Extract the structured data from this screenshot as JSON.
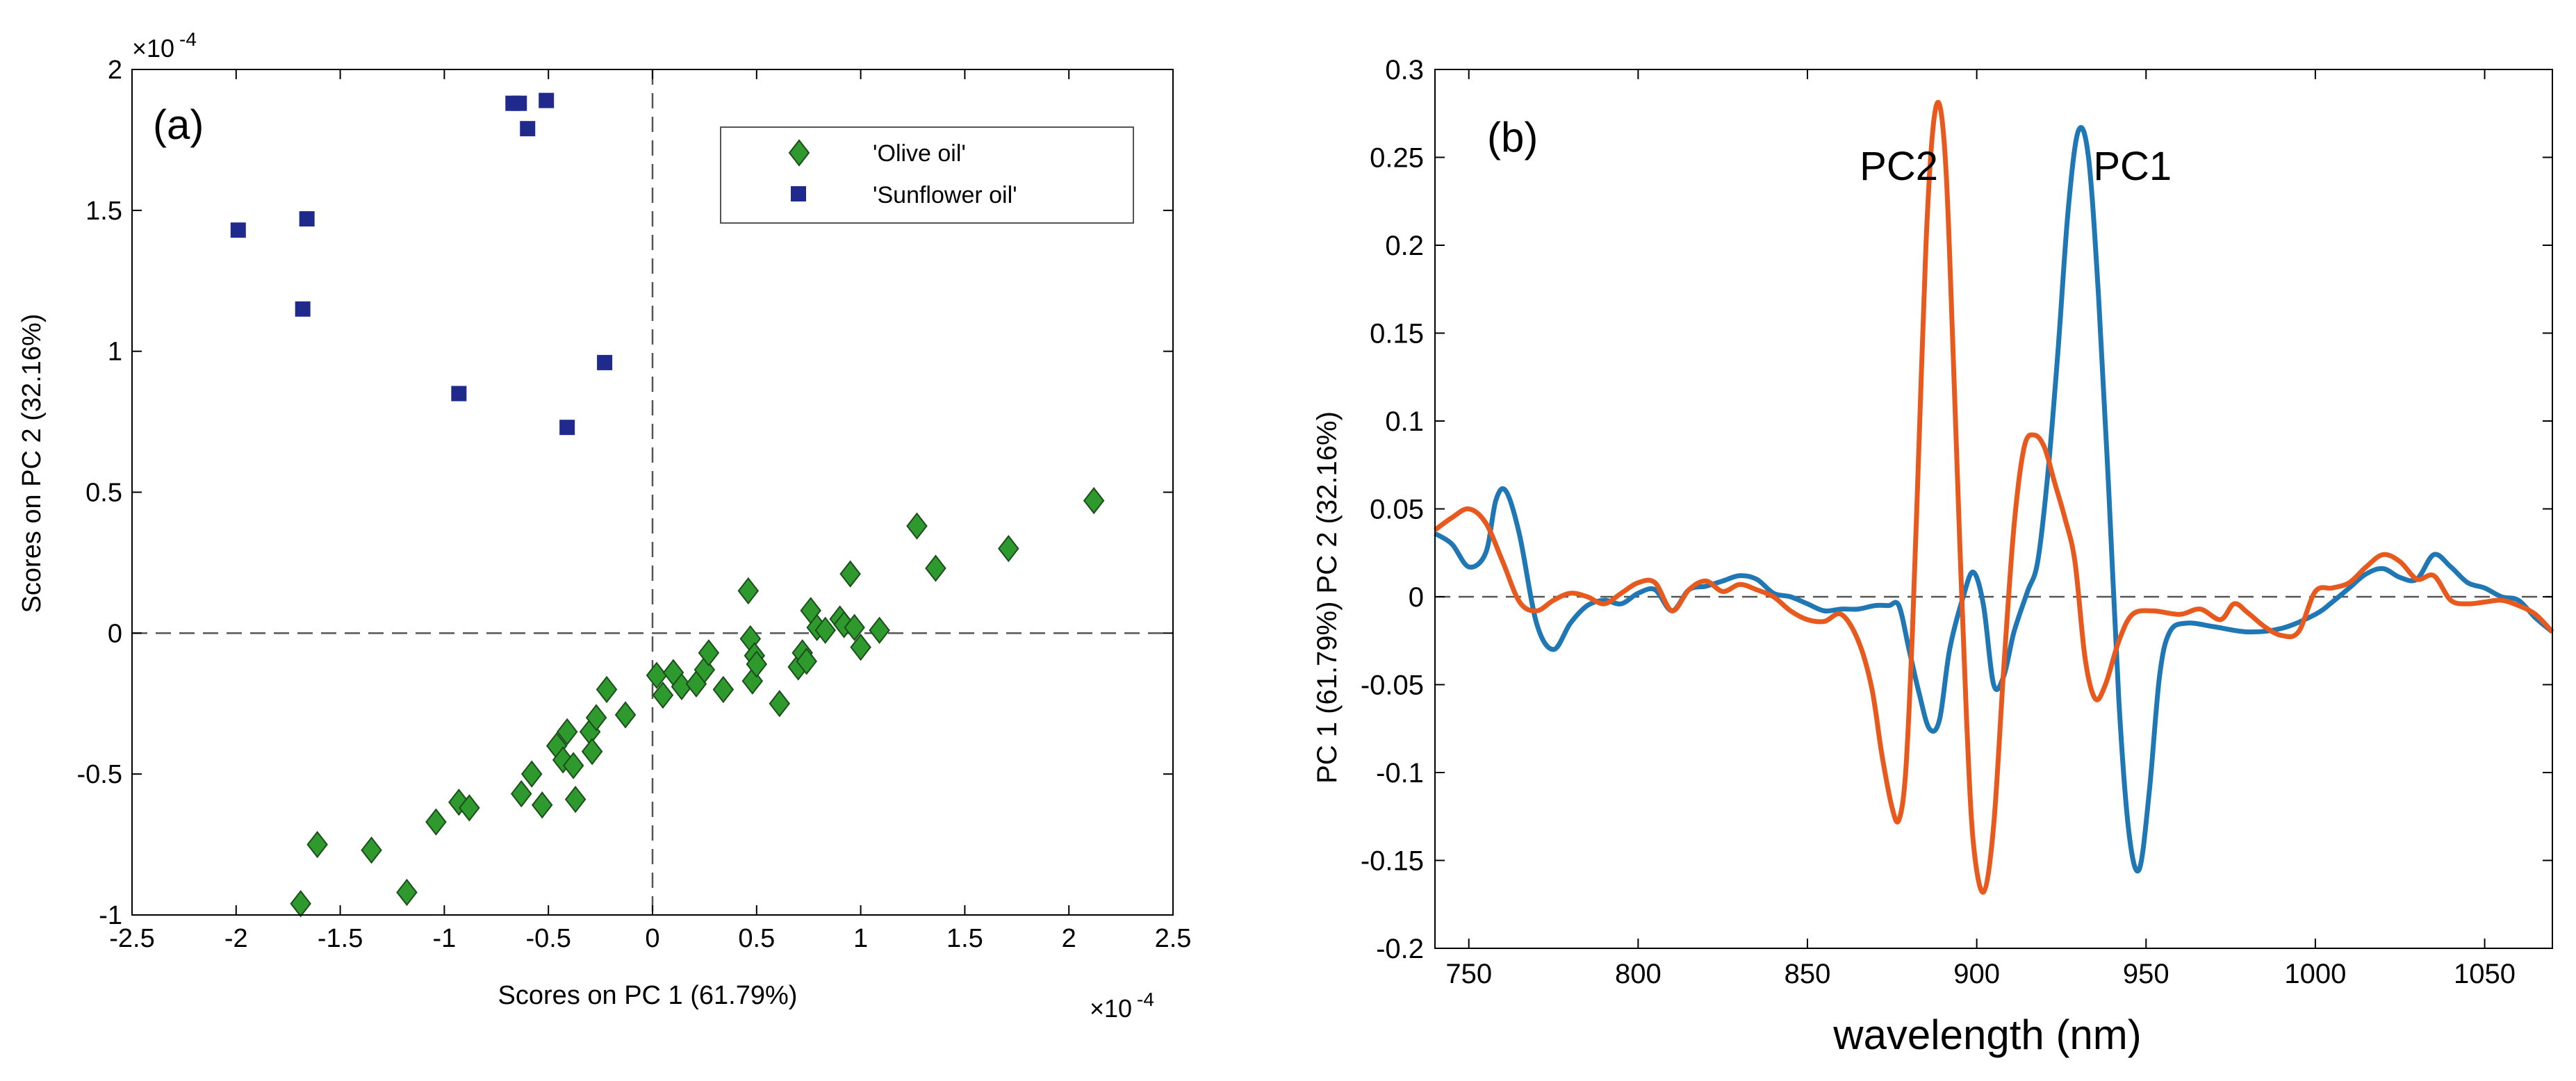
{
  "colors": {
    "olive": "#2e9a2e",
    "sunflower": "#1f2a8c",
    "pc1": "#1f77b4",
    "pc2": "#e8591e",
    "axis": "#000000",
    "dash": "#555555"
  },
  "chart_data": [
    {
      "type": "scatter",
      "panel_label": "(a)",
      "xlabel": "Scores on PC 1 (61.79%)",
      "ylabel": "Scores on PC 2 (32.16%)",
      "x_multiplier": "×10",
      "x_exponent": "-4",
      "y_multiplier": "×10",
      "y_exponent": "-4",
      "xlim": [
        -2.5,
        2.5
      ],
      "ylim": [
        -1,
        2
      ],
      "xticks": [
        -2.5,
        -2,
        -1.5,
        -1,
        -0.5,
        0,
        0.5,
        1,
        1.5,
        2,
        2.5
      ],
      "xtick_labels": [
        "-2.5",
        "-2",
        "-1.5",
        "-1",
        "-0.5",
        "0",
        "0.5",
        "1",
        "1.5",
        "2",
        "2.5"
      ],
      "yticks": [
        -1,
        -0.5,
        0,
        0.5,
        1,
        1.5,
        2
      ],
      "ytick_labels": [
        "-1",
        "-0.5",
        "0",
        "0.5",
        "1",
        "1.5",
        "2"
      ],
      "reference_lines": {
        "x": 0,
        "y": 0
      },
      "legend_position": "top-right",
      "series": [
        {
          "name": "'Olive oil'",
          "marker": "diamond",
          "points": [
            [
              -1.69,
              -0.96
            ],
            [
              -1.61,
              -0.75
            ],
            [
              -1.35,
              -0.77
            ],
            [
              -1.18,
              -0.92
            ],
            [
              -1.04,
              -0.67
            ],
            [
              -0.93,
              -0.6
            ],
            [
              -0.88,
              -0.62
            ],
            [
              -0.63,
              -0.57
            ],
            [
              -0.58,
              -0.5
            ],
            [
              -0.53,
              -0.61
            ],
            [
              -0.46,
              -0.4
            ],
            [
              -0.43,
              -0.45
            ],
            [
              -0.41,
              -0.35
            ],
            [
              -0.38,
              -0.47
            ],
            [
              -0.37,
              -0.59
            ],
            [
              -0.3,
              -0.35
            ],
            [
              -0.29,
              -0.42
            ],
            [
              -0.27,
              -0.3
            ],
            [
              -0.22,
              -0.2
            ],
            [
              -0.13,
              -0.29
            ],
            [
              0.02,
              -0.15
            ],
            [
              0.05,
              -0.22
            ],
            [
              0.1,
              -0.14
            ],
            [
              0.14,
              -0.19
            ],
            [
              0.21,
              -0.18
            ],
            [
              0.25,
              -0.13
            ],
            [
              0.27,
              -0.07
            ],
            [
              0.34,
              -0.2
            ],
            [
              0.46,
              0.15
            ],
            [
              0.47,
              -0.02
            ],
            [
              0.48,
              -0.17
            ],
            [
              0.49,
              -0.08
            ],
            [
              0.5,
              -0.11
            ],
            [
              0.61,
              -0.25
            ],
            [
              0.7,
              -0.12
            ],
            [
              0.72,
              -0.07
            ],
            [
              0.74,
              -0.1
            ],
            [
              0.76,
              0.08
            ],
            [
              0.79,
              0.02
            ],
            [
              0.83,
              0.01
            ],
            [
              0.9,
              0.05
            ],
            [
              0.92,
              0.03
            ],
            [
              0.95,
              0.21
            ],
            [
              0.97,
              0.02
            ],
            [
              1.0,
              -0.05
            ],
            [
              1.09,
              0.01
            ],
            [
              1.27,
              0.38
            ],
            [
              1.36,
              0.23
            ],
            [
              1.71,
              0.3
            ],
            [
              2.12,
              0.47
            ]
          ]
        },
        {
          "name": "'Sunflower oil'",
          "marker": "square",
          "points": [
            [
              -1.99,
              1.43
            ],
            [
              -1.68,
              1.15
            ],
            [
              -1.66,
              1.47
            ],
            [
              -0.93,
              0.85
            ],
            [
              -0.67,
              1.88
            ],
            [
              -0.64,
              1.88
            ],
            [
              -0.6,
              1.79
            ],
            [
              -0.51,
              1.89
            ],
            [
              -0.41,
              0.73
            ],
            [
              -0.23,
              0.96
            ]
          ]
        }
      ]
    },
    {
      "type": "line",
      "panel_label": "(b)",
      "xlabel": "wavelength (nm)",
      "ylabel": "PC 1 (61.79%)  PC 2 (32.16%)",
      "xlim": [
        740,
        1070
      ],
      "ylim": [
        -0.2,
        0.3
      ],
      "xticks": [
        750,
        800,
        850,
        900,
        950,
        1000,
        1050
      ],
      "xtick_labels": [
        "750",
        "800",
        "850",
        "900",
        "950",
        "1000",
        "1050"
      ],
      "yticks": [
        -0.2,
        -0.15,
        -0.1,
        -0.05,
        0,
        0.05,
        0.1,
        0.15,
        0.2,
        0.25,
        0.3
      ],
      "ytick_labels": [
        "-0.2",
        "-0.15",
        "-0.1",
        "-0.05",
        "0",
        "0.05",
        "0.1",
        "0.15",
        "0.2",
        "0.25",
        "0.3"
      ],
      "reference_lines": {
        "y": 0
      },
      "annotations": [
        {
          "text": "PC2",
          "x": 877,
          "y": 0.245
        },
        {
          "text": "PC1",
          "x": 946,
          "y": 0.245
        }
      ],
      "series": [
        {
          "name": "PC1",
          "points": [
            [
              740,
              0.036
            ],
            [
              745,
              0.03
            ],
            [
              750,
              0.017
            ],
            [
              755,
              0.025
            ],
            [
              758,
              0.055
            ],
            [
              761,
              0.06
            ],
            [
              765,
              0.035
            ],
            [
              770,
              -0.015
            ],
            [
              775,
              -0.03
            ],
            [
              780,
              -0.015
            ],
            [
              785,
              -0.005
            ],
            [
              790,
              -0.002
            ],
            [
              795,
              -0.004
            ],
            [
              800,
              0.002
            ],
            [
              805,
              0.004
            ],
            [
              810,
              -0.008
            ],
            [
              815,
              0.004
            ],
            [
              820,
              0.006
            ],
            [
              825,
              0.009
            ],
            [
              830,
              0.012
            ],
            [
              835,
              0.01
            ],
            [
              840,
              0.002
            ],
            [
              845,
              0.0
            ],
            [
              850,
              -0.004
            ],
            [
              855,
              -0.008
            ],
            [
              860,
              -0.007
            ],
            [
              865,
              -0.007
            ],
            [
              870,
              -0.005
            ],
            [
              874,
              -0.005
            ],
            [
              877,
              -0.005
            ],
            [
              880,
              -0.03
            ],
            [
              883,
              -0.055
            ],
            [
              886,
              -0.075
            ],
            [
              889,
              -0.07
            ],
            [
              892,
              -0.03
            ],
            [
              896,
              0.0
            ],
            [
              899,
              0.014
            ],
            [
              902,
              -0.005
            ],
            [
              905,
              -0.05
            ],
            [
              908,
              -0.045
            ],
            [
              911,
              -0.02
            ],
            [
              915,
              0.003
            ],
            [
              918,
              0.02
            ],
            [
              921,
              0.07
            ],
            [
              924,
              0.14
            ],
            [
              927,
              0.22
            ],
            [
              930,
              0.265
            ],
            [
              933,
              0.25
            ],
            [
              936,
              0.17
            ],
            [
              939,
              0.06
            ],
            [
              942,
              -0.06
            ],
            [
              945,
              -0.135
            ],
            [
              948,
              -0.155
            ],
            [
              951,
              -0.11
            ],
            [
              954,
              -0.045
            ],
            [
              957,
              -0.02
            ],
            [
              962,
              -0.015
            ],
            [
              970,
              -0.017
            ],
            [
              980,
              -0.02
            ],
            [
              990,
              -0.018
            ],
            [
              1000,
              -0.01
            ],
            [
              1005,
              -0.003
            ],
            [
              1010,
              0.005
            ],
            [
              1015,
              0.013
            ],
            [
              1020,
              0.016
            ],
            [
              1025,
              0.011
            ],
            [
              1030,
              0.01
            ],
            [
              1035,
              0.024
            ],
            [
              1040,
              0.017
            ],
            [
              1045,
              0.008
            ],
            [
              1050,
              0.005
            ],
            [
              1055,
              0.0
            ],
            [
              1060,
              -0.002
            ],
            [
              1065,
              -0.012
            ],
            [
              1070,
              -0.02
            ]
          ]
        },
        {
          "name": "PC2",
          "points": [
            [
              740,
              0.038
            ],
            [
              745,
              0.045
            ],
            [
              750,
              0.05
            ],
            [
              755,
              0.042
            ],
            [
              760,
              0.02
            ],
            [
              765,
              -0.003
            ],
            [
              770,
              -0.008
            ],
            [
              775,
              -0.002
            ],
            [
              780,
              0.002
            ],
            [
              785,
              0.0
            ],
            [
              790,
              -0.004
            ],
            [
              795,
              0.002
            ],
            [
              800,
              0.008
            ],
            [
              805,
              0.008
            ],
            [
              810,
              -0.008
            ],
            [
              815,
              0.004
            ],
            [
              820,
              0.009
            ],
            [
              825,
              0.003
            ],
            [
              830,
              0.007
            ],
            [
              835,
              0.004
            ],
            [
              840,
              0.0
            ],
            [
              845,
              -0.008
            ],
            [
              850,
              -0.013
            ],
            [
              855,
              -0.014
            ],
            [
              860,
              -0.01
            ],
            [
              865,
              -0.025
            ],
            [
              869,
              -0.052
            ],
            [
              872,
              -0.09
            ],
            [
              875,
              -0.12
            ],
            [
              877,
              -0.127
            ],
            [
              879,
              -0.1
            ],
            [
              881,
              -0.02
            ],
            [
              883,
              0.09
            ],
            [
              885,
              0.2
            ],
            [
              887,
              0.265
            ],
            [
              889,
              0.28
            ],
            [
              891,
              0.24
            ],
            [
              893,
              0.14
            ],
            [
              895,
              0.03
            ],
            [
              897,
              -0.07
            ],
            [
              899,
              -0.14
            ],
            [
              902,
              -0.168
            ],
            [
              905,
              -0.13
            ],
            [
              908,
              -0.04
            ],
            [
              911,
              0.04
            ],
            [
              914,
              0.085
            ],
            [
              917,
              0.092
            ],
            [
              920,
              0.085
            ],
            [
              923,
              0.065
            ],
            [
              926,
              0.045
            ],
            [
              929,
              0.02
            ],
            [
              932,
              -0.035
            ],
            [
              935,
              -0.058
            ],
            [
              938,
              -0.05
            ],
            [
              942,
              -0.025
            ],
            [
              946,
              -0.01
            ],
            [
              952,
              -0.008
            ],
            [
              960,
              -0.01
            ],
            [
              966,
              -0.007
            ],
            [
              972,
              -0.013
            ],
            [
              976,
              -0.004
            ],
            [
              980,
              -0.009
            ],
            [
              985,
              -0.017
            ],
            [
              990,
              -0.022
            ],
            [
              995,
              -0.02
            ],
            [
              1000,
              0.003
            ],
            [
              1005,
              0.005
            ],
            [
              1010,
              0.008
            ],
            [
              1015,
              0.017
            ],
            [
              1020,
              0.024
            ],
            [
              1025,
              0.02
            ],
            [
              1030,
              0.01
            ],
            [
              1035,
              0.012
            ],
            [
              1040,
              -0.002
            ],
            [
              1045,
              -0.004
            ],
            [
              1050,
              -0.003
            ],
            [
              1055,
              -0.002
            ],
            [
              1060,
              -0.005
            ],
            [
              1065,
              -0.01
            ],
            [
              1070,
              -0.02
            ]
          ]
        }
      ]
    }
  ]
}
